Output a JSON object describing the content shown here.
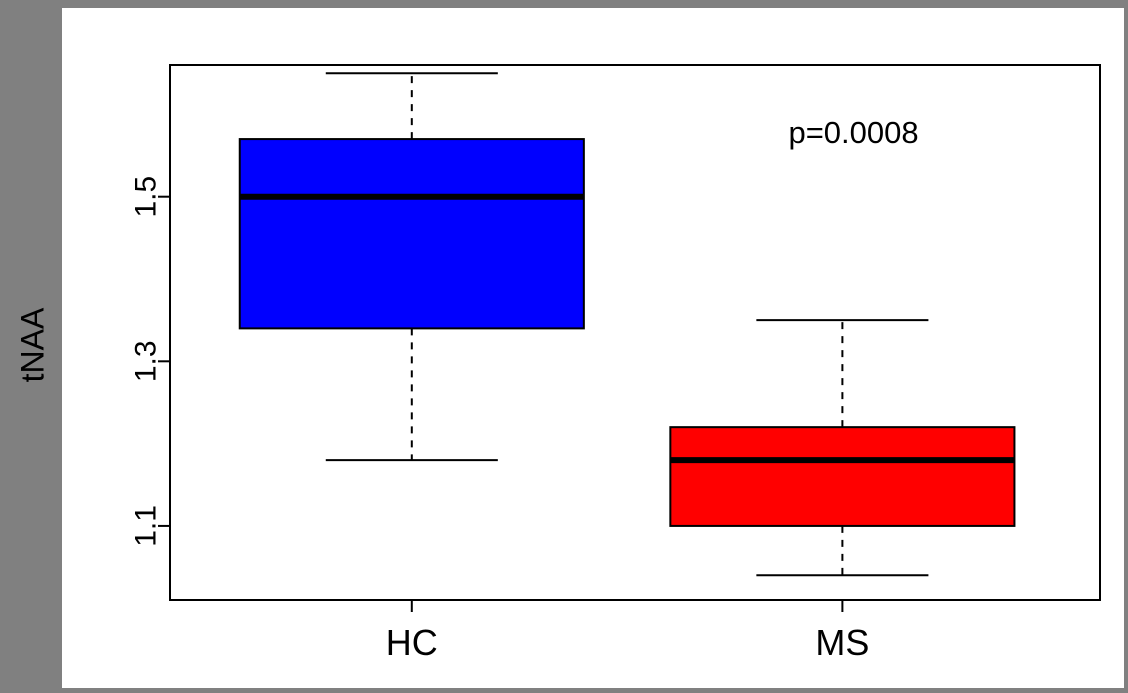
{
  "chart_data": {
    "type": "boxplot",
    "title": "",
    "xlabel": "",
    "ylabel": "tNAA",
    "ylim": [
      1.01,
      1.66
    ],
    "yticks": [
      1.1,
      1.3,
      1.5
    ],
    "grid": false,
    "legend": "none",
    "annotation": "p=0.0008",
    "categories": [
      "HC",
      "MS"
    ],
    "series": [
      {
        "name": "HC",
        "color": "#0000ff",
        "min": 1.18,
        "q1": 1.34,
        "median": 1.5,
        "q3": 1.57,
        "max": 1.65
      },
      {
        "name": "MS",
        "color": "#ff0000",
        "min": 1.04,
        "q1": 1.1,
        "median": 1.18,
        "q3": 1.22,
        "max": 1.35
      }
    ],
    "frame_color": "#000000",
    "plot_background": "#ffffff",
    "outer_background": "#808080"
  }
}
